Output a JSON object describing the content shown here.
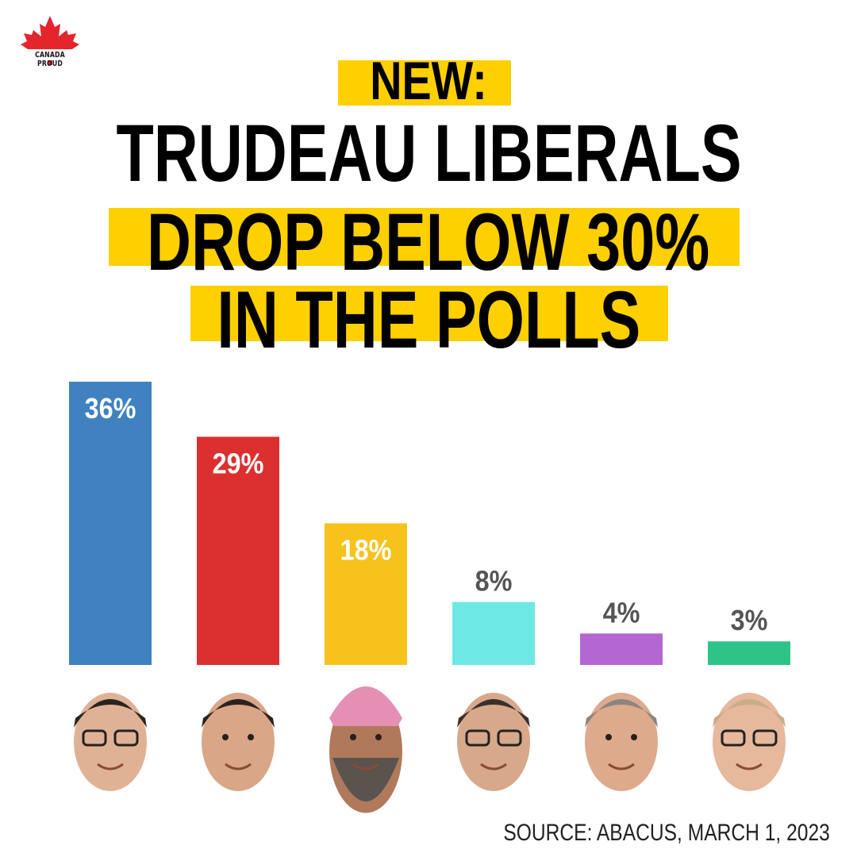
{
  "brand": {
    "logo_text": "CANADA PROUD",
    "logo_color": "#e4252c"
  },
  "headline": {
    "kicker": "NEW:",
    "line1": "TRUDEAU LIBERALS",
    "line2": "DROP BELOW 30%",
    "line3": "IN THE POLLS",
    "highlight_color": "#ffd000"
  },
  "chart_data": {
    "type": "bar",
    "categories": [
      "",
      "",
      "",
      "",
      "",
      ""
    ],
    "values": [
      36,
      29,
      18,
      8,
      4,
      3
    ],
    "labels": [
      "36%",
      "29%",
      "18%",
      "8%",
      "4%",
      "3%"
    ],
    "colors": [
      "#3f82bf",
      "#dc2f30",
      "#f7c21c",
      "#6ee8e4",
      "#b466d2",
      "#2fc487"
    ],
    "label_placement": [
      "inside",
      "inside",
      "inside",
      "outside",
      "outside",
      "outside"
    ],
    "ylim": [
      0,
      36
    ],
    "grid": false,
    "legend": "none",
    "images": [
      "face-photo",
      "face-photo",
      "face-photo",
      "face-photo",
      "face-photo",
      "face-photo"
    ]
  },
  "source": "SOURCE: ABACUS, MARCH 1, 2023"
}
